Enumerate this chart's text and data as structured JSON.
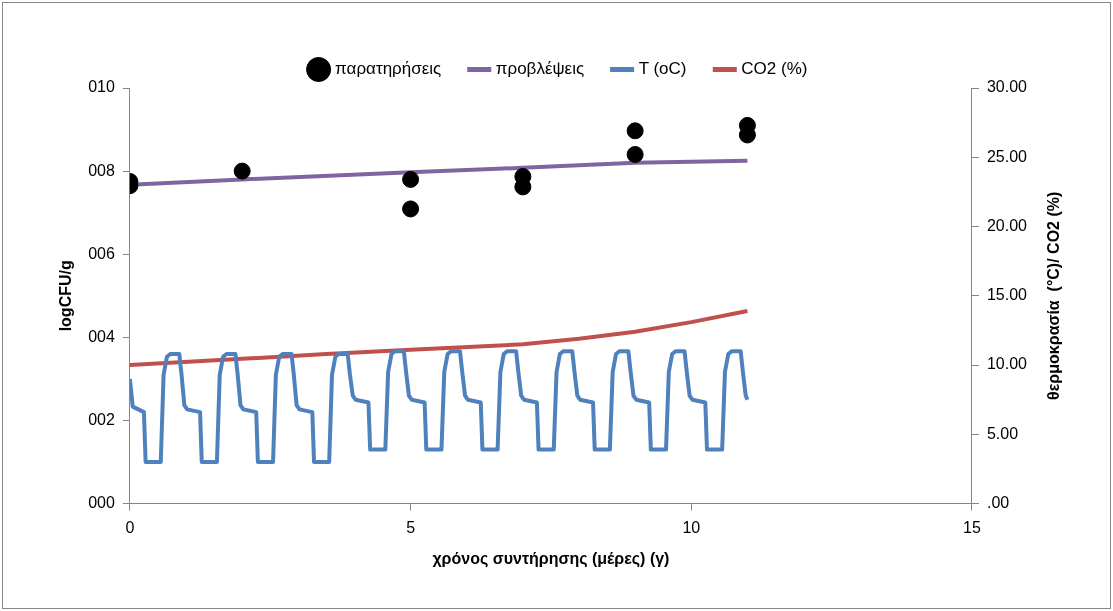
{
  "chart_data": {
    "type": "line",
    "xlabel": "χρόνος συντήρησης (μέρες) (γ)",
    "ylabel": "logCFU/g",
    "y2label": "θερμοκρασία  (°C)/ CO2 (%)",
    "legend": "top",
    "grid": false,
    "xlim": [
      0,
      15
    ],
    "xticks": [
      0,
      5,
      10,
      15
    ],
    "ylim": [
      0,
      10
    ],
    "yticks": [
      {
        "value": 0,
        "label": "000"
      },
      {
        "value": 2,
        "label": "002"
      },
      {
        "value": 4,
        "label": "004"
      },
      {
        "value": 6,
        "label": "006"
      },
      {
        "value": 8,
        "label": "008"
      },
      {
        "value": 10,
        "label": "010"
      }
    ],
    "y2lim": [
      0,
      30
    ],
    "y2ticks": [
      {
        "value": 0,
        "label": ".00"
      },
      {
        "value": 5,
        "label": "5.00"
      },
      {
        "value": 10,
        "label": "10.00"
      },
      {
        "value": 15,
        "label": "15.00"
      },
      {
        "value": 20,
        "label": "20.00"
      },
      {
        "value": 25,
        "label": "25.00"
      },
      {
        "value": 30,
        "label": "30.00"
      }
    ],
    "series": [
      {
        "name": "παρατηρήσεις",
        "type": "scatter",
        "marker": "circle",
        "color": "#000000",
        "x": [
          0,
          0,
          2,
          5,
          5,
          7,
          7,
          9,
          9,
          11,
          11
        ],
        "values": [
          7.75,
          7.65,
          8.0,
          7.8,
          7.09,
          7.87,
          7.62,
          8.97,
          8.4,
          9.1,
          8.87
        ]
      },
      {
        "name": "προβλέψεις",
        "marker": "none",
        "color": "#8064a2",
        "x": [
          0,
          2,
          5,
          7,
          9,
          11
        ],
        "values": [
          7.67,
          7.8,
          7.97,
          8.08,
          8.2,
          8.25
        ]
      },
      {
        "name": "T (oC)",
        "marker": "none",
        "axis": "y2",
        "color": "#4f81bd",
        "x": [
          0,
          0.05,
          0.25,
          0.28,
          0.55,
          0.6,
          0.66,
          0.72,
          0.88,
          0.92,
          0.97,
          1.02,
          1.25,
          1.28,
          1.55,
          1.6,
          1.66,
          1.72,
          1.88,
          1.92,
          1.97,
          2.02,
          2.25,
          2.28,
          2.55,
          2.6,
          2.66,
          2.72,
          2.88,
          2.92,
          2.97,
          3.02,
          3.25,
          3.28,
          3.55,
          3.6,
          3.66,
          3.72,
          3.88,
          3.92,
          3.97,
          4.02,
          4.25,
          4.28,
          4.55,
          4.6,
          4.66,
          4.72,
          4.88,
          4.92,
          4.97,
          5.02,
          5.25,
          5.28,
          5.55,
          5.6,
          5.66,
          5.72,
          5.88,
          5.92,
          5.97,
          6.02,
          6.25,
          6.28,
          6.55,
          6.6,
          6.66,
          6.72,
          6.88,
          6.92,
          6.97,
          7.02,
          7.25,
          7.28,
          7.55,
          7.6,
          7.66,
          7.72,
          7.88,
          7.92,
          7.97,
          8.02,
          8.25,
          8.28,
          8.55,
          8.6,
          8.66,
          8.72,
          8.88,
          8.92,
          8.97,
          9.02,
          9.25,
          9.28,
          9.55,
          9.6,
          9.66,
          9.72,
          9.88,
          9.92,
          9.97,
          10.02,
          10.25,
          10.28,
          10.55,
          10.6,
          10.66,
          10.72,
          10.88,
          10.92,
          10.97,
          11.0
        ],
        "values": [
          9.0,
          7.0,
          6.6,
          3.0,
          3.0,
          9.3,
          10.6,
          10.8,
          10.8,
          9.3,
          7.1,
          6.8,
          6.6,
          3.0,
          3.0,
          9.3,
          10.6,
          10.8,
          10.8,
          9.3,
          7.1,
          6.8,
          6.6,
          3.0,
          3.0,
          9.3,
          10.6,
          10.8,
          10.8,
          9.3,
          7.1,
          6.8,
          6.6,
          3.0,
          3.0,
          9.3,
          10.6,
          10.8,
          10.8,
          9.3,
          7.8,
          7.5,
          7.3,
          3.9,
          3.9,
          9.5,
          10.8,
          11.0,
          11.0,
          9.5,
          7.8,
          7.5,
          7.3,
          3.9,
          3.9,
          9.5,
          10.8,
          11.0,
          11.0,
          9.5,
          7.8,
          7.5,
          7.3,
          3.9,
          3.9,
          9.5,
          10.8,
          11.0,
          11.0,
          9.5,
          7.8,
          7.5,
          7.3,
          3.9,
          3.9,
          9.5,
          10.8,
          11.0,
          11.0,
          9.5,
          7.8,
          7.5,
          7.3,
          3.9,
          3.9,
          9.5,
          10.8,
          11.0,
          11.0,
          9.5,
          7.8,
          7.5,
          7.3,
          3.9,
          3.9,
          9.5,
          10.8,
          11.0,
          11.0,
          9.5,
          7.8,
          7.5,
          7.3,
          3.9,
          3.9,
          9.5,
          10.8,
          11.0,
          11.0,
          9.5,
          7.8,
          7.5
        ]
      },
      {
        "name": "CO2 (%)",
        "marker": "none",
        "axis": "y2",
        "color": "#c0504d",
        "x": [
          0,
          2,
          3.5,
          5,
          7,
          8,
          9,
          10,
          11
        ],
        "values": [
          10.0,
          10.45,
          10.8,
          11.1,
          11.5,
          11.9,
          12.4,
          13.1,
          13.9
        ]
      }
    ]
  }
}
